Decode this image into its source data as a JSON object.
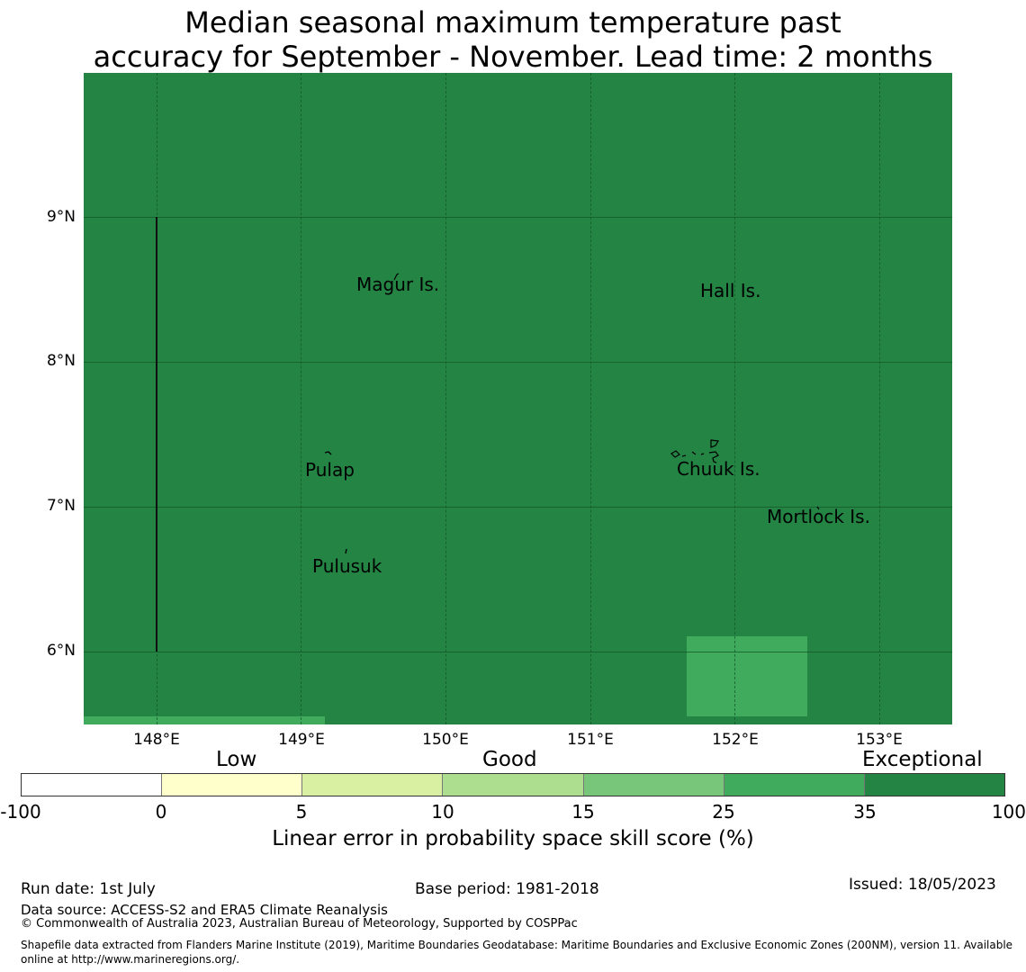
{
  "title": {
    "line1": "Median seasonal maximum temperature past",
    "line2": "accuracy for September - November. Lead time: 2 months"
  },
  "map": {
    "background_color": "#238443",
    "light_cell_color": "#41ab5d",
    "lat_ticks": [
      "9°N",
      "8°N",
      "7°N",
      "6°N"
    ],
    "lon_ticks": [
      "148°E",
      "149°E",
      "150°E",
      "151°E",
      "152°E",
      "153°E"
    ],
    "places": {
      "magur": "Magur Is.",
      "hall": "Hall Is.",
      "pulap": "Pulap",
      "chuuk": "Chuuk Is.",
      "mortlock": "Mortlock Is.",
      "pulusuk": "Pulusuk"
    }
  },
  "colorbar": {
    "categories": {
      "low": "Low",
      "good": "Good",
      "exceptional": "Exceptional"
    },
    "ticks": [
      "-100",
      "0",
      "5",
      "10",
      "15",
      "25",
      "35",
      "100"
    ],
    "colors": [
      "#ffffff",
      "#ffffcc",
      "#d9f0a3",
      "#addd8e",
      "#78c679",
      "#41ab5d",
      "#238443"
    ],
    "label": "Linear error in probability space skill score (%)"
  },
  "footer": {
    "run_date": "Run date: 1st July",
    "base_period": "Base period: 1981-2018",
    "issued": "Issued: 18/05/2023",
    "data_source": "Data source: ACCESS-S2 and ERA5 Climate Reanalysis",
    "copyright": "© Commonwealth of Australia 2023, Australian Bureau of Meteorology, Supported by COSPPac",
    "shapefile": "Shapefile data extracted from Flanders Marine Institute (2019), Maritime Boundaries Geodatabase: Maritime Boundaries and Exclusive Economic Zones (200NM), version 11. Available online at http://www.marineregions.org/."
  }
}
